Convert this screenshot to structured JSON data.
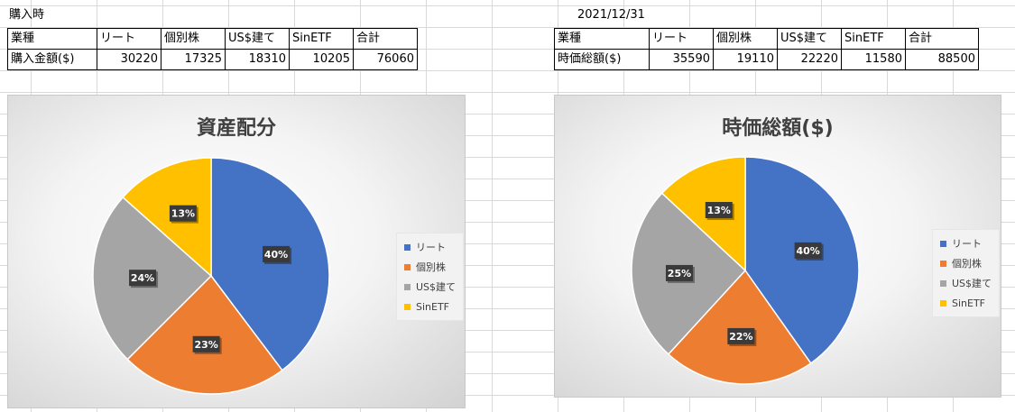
{
  "left": {
    "caption": "購入時",
    "table": {
      "headers": [
        "業種",
        "リート",
        "個別株",
        "US$建て",
        "SinETF",
        "合計"
      ],
      "row_label": "購入金額($)",
      "values": [
        "30220",
        "17325",
        "18310",
        "10205",
        "76060"
      ]
    }
  },
  "right": {
    "caption": "2021/12/31",
    "table": {
      "headers": [
        "業種",
        "リート",
        "個別株",
        "US$建て",
        "SinETF",
        "合計"
      ],
      "row_label": "時価総額($)",
      "values": [
        "35590",
        "19110",
        "22220",
        "11580",
        "88500"
      ]
    }
  },
  "colors": {
    "リート": "#4472c4",
    "個別株": "#ed7d31",
    "US$建て": "#a5a5a5",
    "SinETF": "#ffc000"
  },
  "chart_data": [
    {
      "type": "pie",
      "title": "資産配分",
      "categories": [
        "リート",
        "個別株",
        "US$建て",
        "SinETF"
      ],
      "values": [
        30220,
        17325,
        18310,
        10205
      ],
      "data_labels": [
        "40%",
        "23%",
        "24%",
        "13%"
      ],
      "legend": "right"
    },
    {
      "type": "pie",
      "title": "時価総額($)",
      "categories": [
        "リート",
        "個別株",
        "US$建て",
        "SinETF"
      ],
      "values": [
        35590,
        19110,
        22220,
        11580
      ],
      "data_labels": [
        "40%",
        "22%",
        "25%",
        "13%"
      ],
      "legend": "right"
    }
  ]
}
